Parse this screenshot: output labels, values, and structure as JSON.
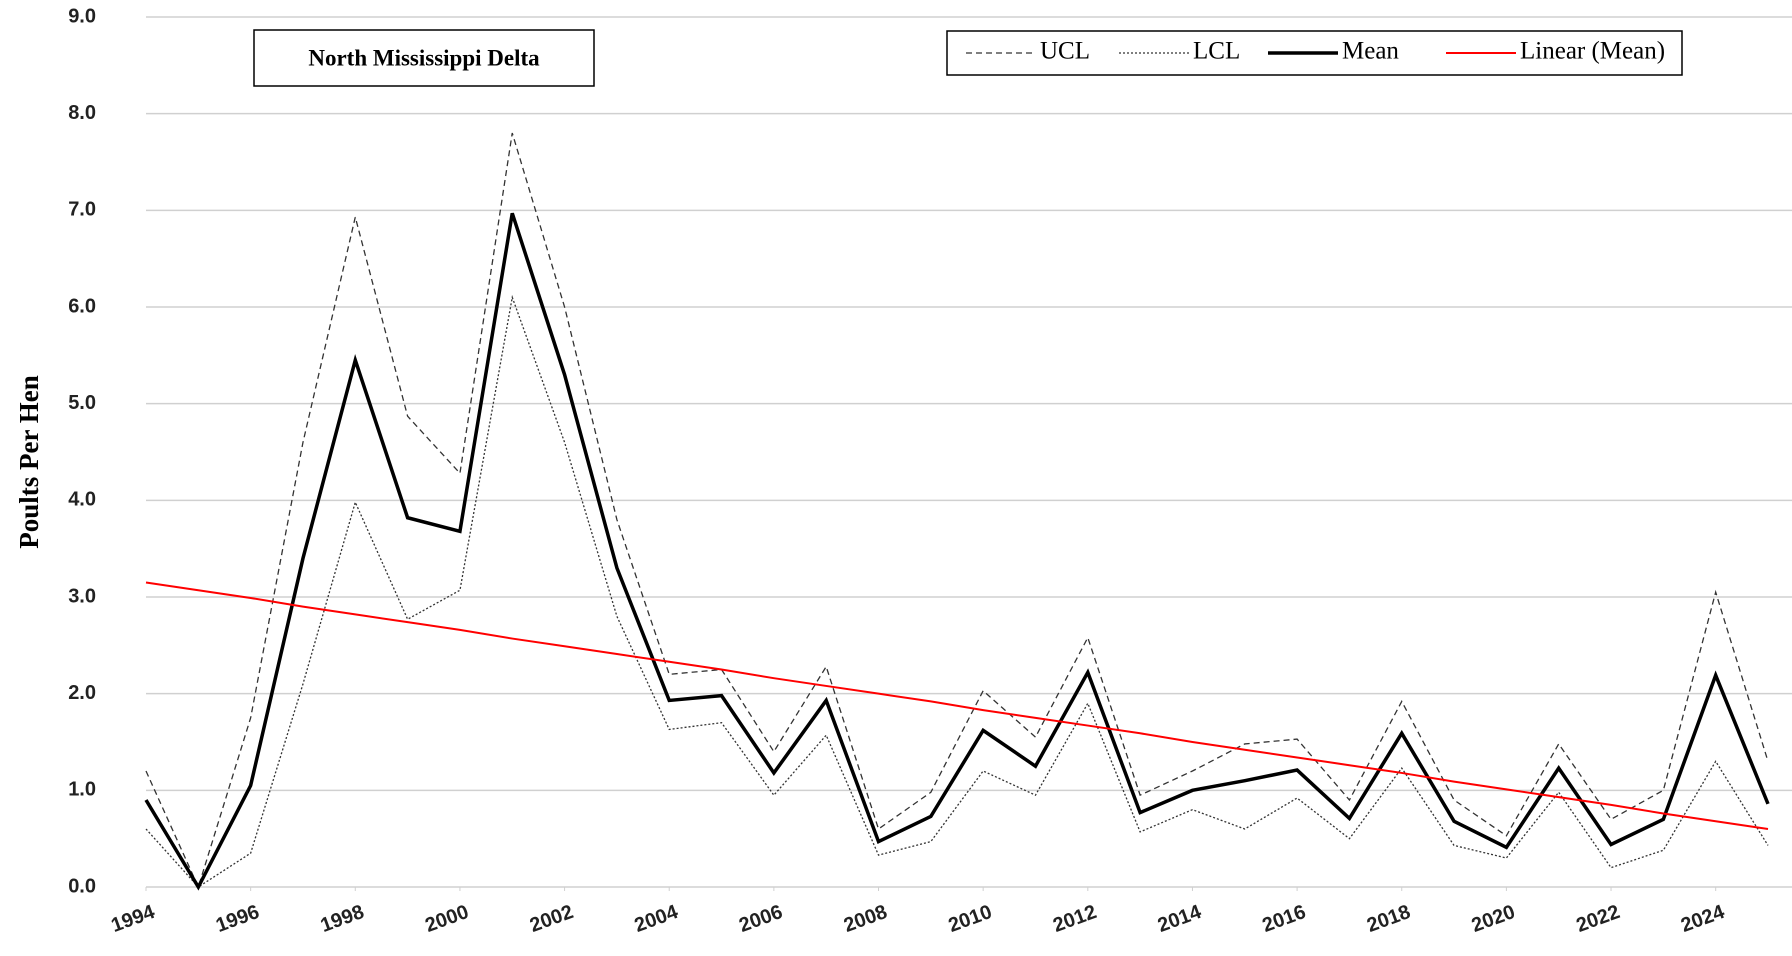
{
  "chart_data": {
    "type": "line",
    "annotation": "North Mississippi Delta",
    "y_label": "Poults Per Hen",
    "x": [
      1994,
      1995,
      1996,
      1997,
      1998,
      1999,
      2000,
      2001,
      2002,
      2003,
      2004,
      2005,
      2006,
      2007,
      2008,
      2009,
      2010,
      2011,
      2012,
      2013,
      2014,
      2015,
      2016,
      2017,
      2018,
      2019,
      2020,
      2021,
      2022,
      2023,
      2024,
      2025
    ],
    "series": [
      {
        "name": "UCL",
        "color": "#333333",
        "line_style": "dashed",
        "values": [
          1.2,
          0.0,
          1.75,
          4.6,
          6.93,
          4.87,
          4.28,
          7.8,
          6.0,
          3.8,
          2.2,
          2.25,
          1.4,
          2.28,
          0.6,
          0.98,
          2.03,
          1.55,
          2.58,
          0.95,
          1.2,
          1.48,
          1.53,
          0.9,
          1.92,
          0.9,
          0.53,
          1.48,
          0.7,
          1.0,
          3.05,
          1.3
        ]
      },
      {
        "name": "LCL",
        "color": "#333333",
        "line_style": "dotted",
        "values": [
          0.6,
          0.0,
          0.35,
          2.1,
          3.98,
          2.77,
          3.07,
          6.1,
          4.6,
          2.8,
          1.63,
          1.7,
          0.95,
          1.57,
          0.33,
          0.47,
          1.2,
          0.95,
          1.9,
          0.57,
          0.8,
          0.6,
          0.92,
          0.5,
          1.23,
          0.43,
          0.3,
          0.98,
          0.2,
          0.38,
          1.3,
          0.43
        ]
      },
      {
        "name": "Mean",
        "color": "#000000",
        "line_style": "solid",
        "values": [
          0.9,
          0.0,
          1.05,
          3.4,
          5.45,
          3.82,
          3.68,
          6.97,
          5.3,
          3.3,
          1.93,
          1.98,
          1.18,
          1.93,
          0.47,
          0.73,
          1.62,
          1.25,
          2.22,
          0.77,
          1.0,
          1.1,
          1.21,
          0.71,
          1.59,
          0.68,
          0.41,
          1.23,
          0.44,
          0.7,
          2.19,
          0.86
        ]
      },
      {
        "name": "Linear (Mean)",
        "color": "#ff0000",
        "line_style": "solid",
        "values": [
          3.15,
          3.07,
          2.99,
          2.9,
          2.82,
          2.74,
          2.66,
          2.57,
          2.49,
          2.41,
          2.33,
          2.25,
          2.16,
          2.08,
          2.0,
          1.92,
          1.83,
          1.75,
          1.67,
          1.59,
          1.5,
          1.42,
          1.34,
          1.26,
          1.18,
          1.09,
          1.01,
          0.93,
          0.85,
          0.76,
          0.68,
          0.6
        ]
      }
    ],
    "xlim": [
      1994,
      2025
    ],
    "xticks": [
      1994,
      1996,
      1998,
      2000,
      2002,
      2004,
      2006,
      2008,
      2010,
      2012,
      2014,
      2016,
      2018,
      2020,
      2022,
      2024
    ],
    "ylim": [
      0,
      9
    ],
    "yticks": [
      {
        "value": 0,
        "label": "0.0"
      },
      {
        "value": 1,
        "label": "1.0"
      },
      {
        "value": 2,
        "label": "2.0"
      },
      {
        "value": 3,
        "label": "3.0"
      },
      {
        "value": 4,
        "label": "4.0"
      },
      {
        "value": 5,
        "label": "5.0"
      },
      {
        "value": 6,
        "label": "6.0"
      },
      {
        "value": 7,
        "label": "7.0"
      },
      {
        "value": 8,
        "label": "8.0"
      },
      {
        "value": 9,
        "label": "9.0"
      }
    ],
    "grid": true,
    "legend": "top-right"
  }
}
